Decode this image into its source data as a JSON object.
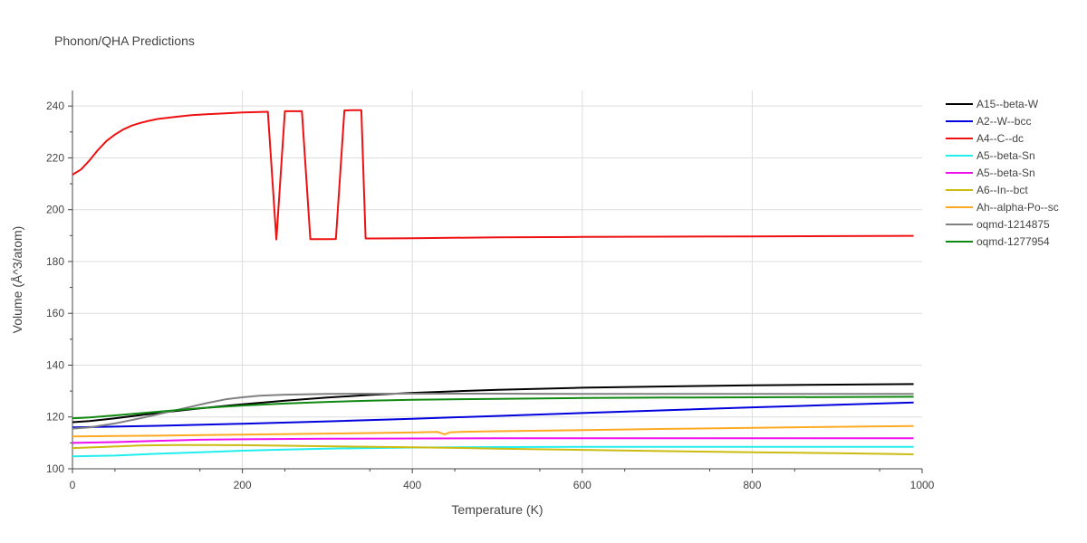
{
  "chart_data": {
    "type": "line",
    "title": "Phonon/QHA Predictions",
    "xlabel": "Temperature (K)",
    "ylabel": "Volume (Å^3/atom)",
    "xlim": [
      0,
      1000
    ],
    "ylim": [
      100,
      246
    ],
    "xticks": [
      0,
      200,
      400,
      600,
      800,
      1000
    ],
    "yticks": [
      100,
      120,
      140,
      160,
      180,
      200,
      220,
      240
    ],
    "grid": true,
    "legend_position": "top-right",
    "series": [
      {
        "name": "A15--beta-W",
        "color": "#000000",
        "x": [
          0,
          20,
          50,
          100,
          150,
          200,
          250,
          300,
          350,
          400,
          500,
          600,
          700,
          800,
          900,
          990
        ],
        "y": [
          118.0,
          118.4,
          119.5,
          121.5,
          123.3,
          124.9,
          126.3,
          127.5,
          128.5,
          129.3,
          130.5,
          131.3,
          131.8,
          132.2,
          132.5,
          132.7
        ]
      },
      {
        "name": "A2--W--bcc",
        "color": "#0000dd",
        "x": [
          0,
          100,
          200,
          300,
          400,
          500,
          600,
          700,
          800,
          900,
          990
        ],
        "y": [
          116.0,
          116.6,
          117.4,
          118.3,
          119.3,
          120.4,
          121.5,
          122.6,
          123.7,
          124.7,
          125.6
        ]
      },
      {
        "name": "A4--C--dc",
        "color": "#ee1111",
        "x": [
          0,
          10,
          20,
          30,
          40,
          50,
          60,
          70,
          80,
          90,
          100,
          120,
          140,
          160,
          180,
          200,
          220,
          230,
          240,
          250,
          260,
          270,
          280,
          290,
          300,
          310,
          320,
          330,
          340,
          345,
          355,
          400,
          500,
          600,
          700,
          800,
          900,
          990
        ],
        "y": [
          213.5,
          215.5,
          219.0,
          223.0,
          226.5,
          229.0,
          231.0,
          232.5,
          233.5,
          234.3,
          235.0,
          235.8,
          236.5,
          236.9,
          237.2,
          237.5,
          237.7,
          237.8,
          188.5,
          238.0,
          238.0,
          238.0,
          188.6,
          188.6,
          188.6,
          188.7,
          238.3,
          238.4,
          238.4,
          188.9,
          188.9,
          189.0,
          189.3,
          189.5,
          189.6,
          189.7,
          189.8,
          189.9
        ]
      },
      {
        "name": "A5--beta-Sn",
        "color": "#22eeee",
        "x": [
          0,
          50,
          100,
          150,
          200,
          250,
          300,
          350,
          400,
          500,
          600,
          700,
          800,
          900,
          990
        ],
        "y": [
          104.8,
          105.1,
          105.8,
          106.4,
          107.0,
          107.4,
          107.8,
          108.0,
          108.2,
          108.4,
          108.5,
          108.5,
          108.5,
          108.5,
          108.5
        ]
      },
      {
        "name": "A5--beta-Sn",
        "color": "#ee11ee",
        "x": [
          0,
          50,
          100,
          150,
          200,
          300,
          400,
          500,
          600,
          700,
          800,
          900,
          990
        ],
        "y": [
          110.0,
          110.3,
          110.8,
          111.2,
          111.4,
          111.6,
          111.7,
          111.8,
          111.8,
          111.8,
          111.8,
          111.8,
          111.8
        ]
      },
      {
        "name": "A6--In--bct",
        "color": "#ccbb11",
        "x": [
          0,
          40,
          80,
          120,
          160,
          200,
          250,
          300,
          400,
          500,
          600,
          700,
          800,
          900,
          990
        ],
        "y": [
          108.0,
          108.5,
          109.0,
          109.2,
          109.2,
          109.1,
          108.9,
          108.7,
          108.3,
          107.8,
          107.3,
          106.8,
          106.4,
          106.0,
          105.6
        ]
      },
      {
        "name": "Ah--alpha-Po--sc",
        "color": "#ffaa22",
        "x": [
          0,
          100,
          200,
          300,
          400,
          430,
          438,
          445,
          460,
          500,
          600,
          700,
          800,
          900,
          990
        ],
        "y": [
          112.5,
          112.8,
          113.2,
          113.6,
          114.0,
          114.2,
          113.3,
          114.1,
          114.3,
          114.5,
          114.9,
          115.4,
          115.8,
          116.2,
          116.5
        ]
      },
      {
        "name": "oqmd-1214875",
        "color": "#808080",
        "x": [
          0,
          20,
          50,
          80,
          100,
          120,
          140,
          160,
          180,
          200,
          220,
          250,
          300,
          350,
          400,
          500,
          600,
          700,
          800,
          900,
          990
        ],
        "y": [
          115.5,
          116.0,
          117.5,
          119.5,
          121.0,
          122.5,
          124.0,
          125.5,
          126.8,
          127.6,
          128.2,
          128.6,
          128.9,
          129.0,
          129.0,
          129.0,
          128.9,
          128.9,
          128.9,
          128.9,
          128.9
        ]
      },
      {
        "name": "oqmd-1277954",
        "color": "#118811",
        "x": [
          0,
          20,
          50,
          100,
          150,
          200,
          250,
          300,
          350,
          400,
          500,
          600,
          700,
          800,
          900,
          990
        ],
        "y": [
          119.5,
          119.8,
          120.6,
          122.0,
          123.4,
          124.4,
          125.2,
          125.8,
          126.3,
          126.6,
          127.0,
          127.3,
          127.5,
          127.6,
          127.7,
          127.8
        ]
      }
    ]
  }
}
